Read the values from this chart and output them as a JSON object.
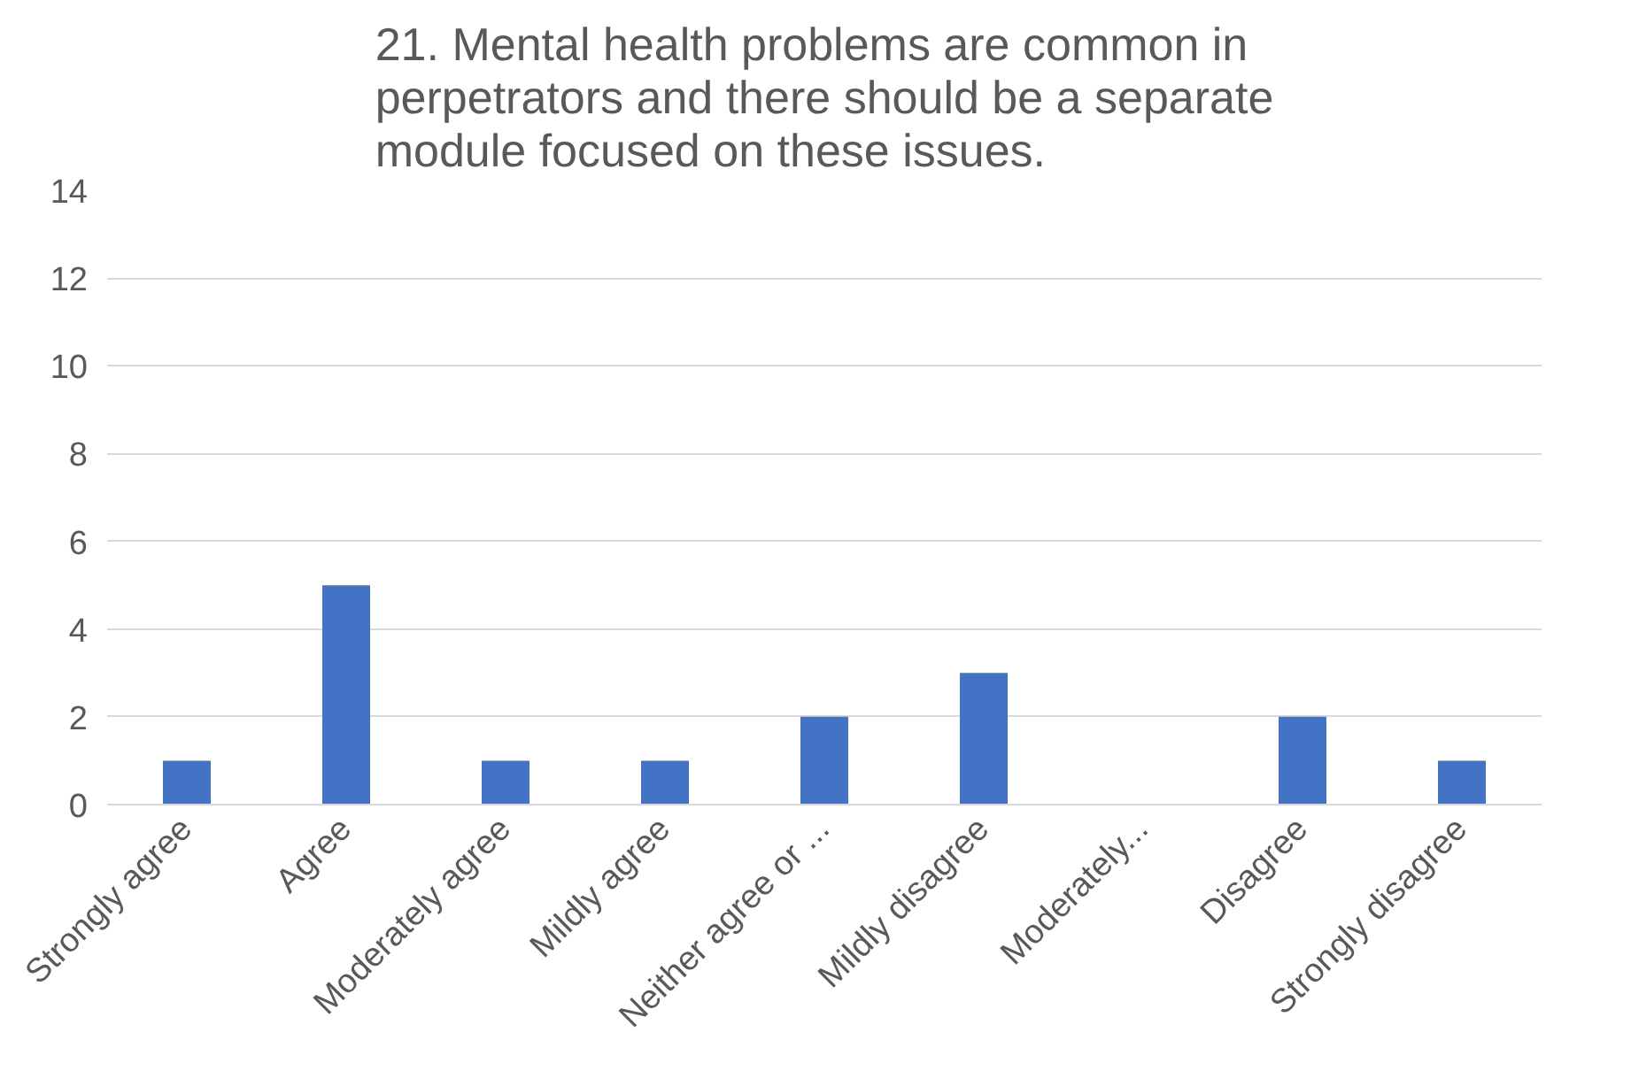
{
  "chart_data": {
    "type": "bar",
    "title": "21. Mental health problems are common in perpetrators and there should be a separate module focused on these issues.",
    "categories": [
      "Strongly agree",
      "Agree",
      "Moderately agree",
      "Mildly agree",
      "Neither agree or ...",
      "Mildly disagree",
      "Moderately...",
      "Disagree",
      "Strongly disagree"
    ],
    "values": [
      1,
      5,
      1,
      1,
      2,
      3,
      0,
      2,
      1
    ],
    "color": "#4472c4",
    "ylim": [
      0,
      14
    ],
    "yticks": [
      0,
      2,
      4,
      6,
      8,
      10,
      12,
      14
    ],
    "grid": "y"
  }
}
